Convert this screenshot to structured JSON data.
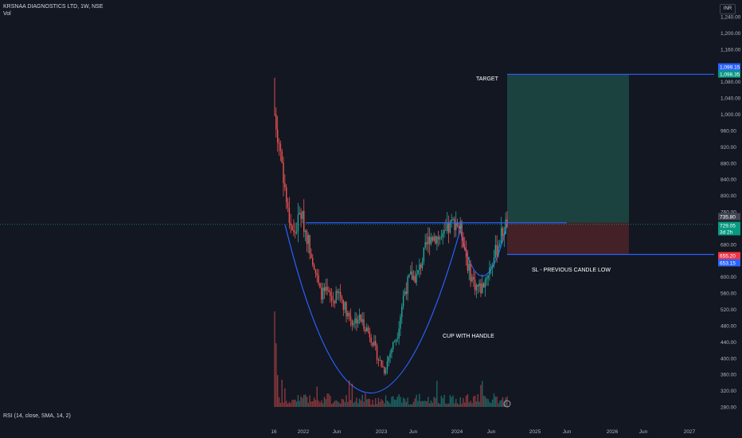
{
  "header": {
    "title": "KRSNAA DIAGNOSTICS LTD, 1W, NSE",
    "vol_label": "Vol"
  },
  "currency": "INR",
  "rsi_label": "RSI (14, close, SMA, 14, 2)",
  "annotations": {
    "target": "TARGET",
    "stoploss": "SL - PREVIOUS CANDLE LOW",
    "pattern": "CUP WITH HANDLE"
  },
  "price_tags": {
    "target_top": "1,099.15",
    "target": "1,098.35",
    "last": "735.80",
    "current": "729.05",
    "countdown": "3d 2h",
    "stop": "655.20",
    "stop_low": "653.15"
  },
  "colors": {
    "background": "#131722",
    "up": "#26a69a",
    "down": "#ef5350",
    "trendline": "#2962ff",
    "target_zone": "#1e4a45",
    "stop_zone": "#4a2128",
    "text": "#d1d4dc"
  },
  "chart_data": {
    "type": "candlestick",
    "title": "KRSNAA DIAGNOSTICS LTD, 1W, NSE",
    "yaxis": {
      "min": 280,
      "max": 1240,
      "ticks": [
        "280.00",
        "320.00",
        "360.00",
        "400.00",
        "440.00",
        "480.00",
        "520.00",
        "560.00",
        "600.00",
        "640.00",
        "680.00",
        "720.00",
        "760.00",
        "800.00",
        "840.00",
        "880.00",
        "920.00",
        "960.00",
        "1,000.00",
        "1,040.00",
        "1,080.00",
        "1,120.00",
        "1,160.00",
        "1,200.00",
        "1,240.00"
      ]
    },
    "xaxis": {
      "ticks": [
        "16",
        "2022",
        "Jun",
        "2023",
        "Jun",
        "2024",
        "Jun",
        "2025",
        "Jun",
        "2026",
        "Jun",
        "2027"
      ]
    },
    "approx_path": [
      [
        "2021-08",
        1000
      ],
      [
        "2021-09",
        900
      ],
      [
        "2021-10",
        760
      ],
      [
        "2021-11",
        700
      ],
      [
        "2021-12",
        760
      ],
      [
        "2022-01",
        700
      ],
      [
        "2022-02",
        640
      ],
      [
        "2022-03",
        560
      ],
      [
        "2022-04",
        560
      ],
      [
        "2022-05",
        540
      ],
      [
        "2022-06",
        560
      ],
      [
        "2022-07",
        520
      ],
      [
        "2022-08",
        490
      ],
      [
        "2022-09",
        500
      ],
      [
        "2022-10",
        480
      ],
      [
        "2022-11",
        450
      ],
      [
        "2022-12",
        400
      ],
      [
        "2023-01",
        370
      ],
      [
        "2023-02",
        420
      ],
      [
        "2023-03",
        460
      ],
      [
        "2023-04",
        560
      ],
      [
        "2023-05",
        600
      ],
      [
        "2023-06",
        600
      ],
      [
        "2023-07",
        650
      ],
      [
        "2023-08",
        700
      ],
      [
        "2023-09",
        700
      ],
      [
        "2023-10",
        690
      ],
      [
        "2023-11",
        720
      ],
      [
        "2023-12",
        740
      ],
      [
        "2024-01",
        710
      ],
      [
        "2024-02",
        620
      ],
      [
        "2024-03",
        580
      ],
      [
        "2024-04",
        570
      ],
      [
        "2024-05",
        610
      ],
      [
        "2024-06",
        650
      ],
      [
        "2024-07",
        700
      ],
      [
        "2024-08",
        735
      ]
    ],
    "levels": {
      "target": 1098.35,
      "resistance": 733,
      "stop": 655.2
    },
    "grid": false,
    "legend": "none"
  }
}
